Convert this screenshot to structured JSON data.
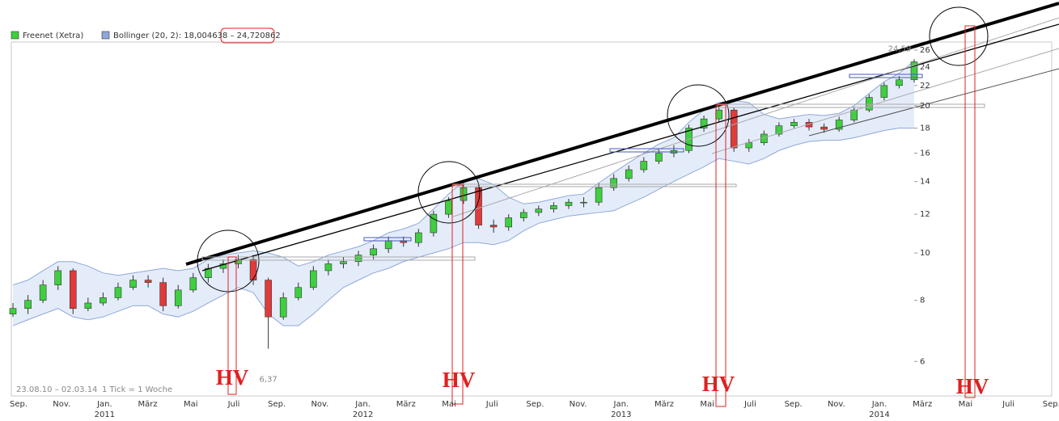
{
  "chart_data": {
    "type": "candlestick",
    "series_name": "Freenet (Xetra)",
    "color_up": "#3fcf3f",
    "color_down": "#e03a3a",
    "open": [
      7.5,
      7.7,
      8.0,
      8.6,
      9.2,
      7.7,
      7.9,
      8.1,
      8.5,
      8.8,
      8.7,
      7.8,
      8.4,
      8.9,
      9.3,
      9.5,
      9.7,
      8.8,
      7.4,
      8.1,
      8.5,
      9.2,
      9.5,
      9.6,
      9.9,
      10.2,
      10.6,
      10.5,
      11.0,
      12.0,
      12.8,
      13.6,
      11.4,
      11.3,
      11.8,
      12.1,
      12.3,
      12.5,
      12.7,
      12.7,
      13.6,
      14.2,
      14.8,
      15.4,
      16.0,
      16.2,
      18.0,
      18.8,
      19.6,
      16.4,
      16.8,
      17.5,
      18.2,
      18.5,
      18.1,
      17.9,
      18.7,
      19.6,
      20.8,
      22.0,
      22.6
    ],
    "high": [
      7.9,
      8.2,
      8.8,
      9.4,
      9.3,
      8.1,
      8.3,
      8.7,
      9.0,
      9.0,
      8.9,
      8.6,
      9.1,
      9.5,
      9.7,
      9.9,
      9.9,
      8.9,
      8.3,
      8.7,
      9.4,
      9.7,
      9.8,
      10.1,
      10.4,
      10.8,
      10.8,
      11.2,
      12.2,
      13.0,
      13.9,
      13.8,
      11.7,
      12.0,
      12.3,
      12.5,
      12.7,
      12.9,
      13.0,
      13.9,
      14.5,
      15.1,
      15.7,
      16.3,
      16.6,
      18.3,
      19.1,
      19.9,
      19.8,
      17.1,
      17.8,
      18.5,
      18.8,
      18.8,
      18.4,
      19.0,
      19.9,
      21.1,
      22.3,
      23.0,
      24.9
    ],
    "low": [
      7.4,
      7.5,
      7.9,
      8.4,
      7.5,
      7.6,
      7.8,
      8.0,
      8.4,
      8.5,
      7.6,
      7.7,
      8.3,
      8.7,
      9.1,
      9.3,
      8.6,
      6.37,
      7.3,
      8.0,
      8.4,
      9.0,
      9.3,
      9.4,
      9.7,
      10.0,
      10.3,
      10.3,
      10.8,
      11.8,
      12.6,
      11.2,
      11.0,
      11.1,
      11.6,
      11.9,
      12.1,
      12.3,
      12.4,
      12.5,
      13.4,
      14.0,
      14.6,
      15.2,
      15.7,
      16.0,
      17.7,
      18.5,
      16.1,
      16.1,
      16.6,
      17.3,
      18.0,
      17.8,
      17.6,
      17.7,
      18.5,
      19.4,
      20.5,
      21.7,
      22.3
    ],
    "close": [
      7.7,
      8.0,
      8.6,
      9.2,
      7.7,
      7.9,
      8.1,
      8.5,
      8.8,
      8.7,
      7.8,
      8.4,
      8.9,
      9.3,
      9.5,
      9.7,
      8.8,
      7.4,
      8.1,
      8.5,
      9.2,
      9.5,
      9.6,
      9.9,
      10.2,
      10.6,
      10.5,
      11.0,
      12.0,
      12.8,
      13.6,
      11.4,
      11.3,
      11.8,
      12.1,
      12.3,
      12.5,
      12.7,
      12.7,
      13.6,
      14.2,
      14.8,
      15.4,
      16.0,
      16.2,
      18.0,
      18.8,
      19.6,
      16.4,
      16.8,
      17.5,
      18.2,
      18.5,
      18.1,
      17.9,
      18.7,
      19.6,
      20.8,
      22.0,
      22.6,
      24.59
    ],
    "bollinger": {
      "name": "Bollinger (20, 2): 18,004638 – 24,720862",
      "color": "#8fa8d8",
      "upper": [
        8.6,
        8.8,
        9.2,
        9.6,
        9.6,
        9.4,
        9.1,
        9.0,
        9.1,
        9.2,
        9.3,
        9.2,
        9.3,
        9.7,
        9.9,
        10.0,
        10.1,
        10.0,
        9.8,
        9.4,
        9.6,
        9.9,
        10.1,
        10.3,
        10.6,
        11.0,
        11.2,
        11.5,
        12.3,
        13.2,
        14.0,
        14.2,
        13.8,
        13.0,
        12.6,
        12.7,
        12.9,
        13.1,
        13.2,
        13.9,
        14.6,
        15.3,
        16.0,
        16.7,
        17.2,
        18.5,
        19.6,
        20.3,
        20.5,
        20.3,
        19.2,
        18.8,
        19.0,
        19.2,
        19.1,
        19.3,
        20.0,
        21.2,
        22.4,
        23.3,
        24.7
      ],
      "lower": [
        7.1,
        7.3,
        7.5,
        7.7,
        7.4,
        7.3,
        7.4,
        7.6,
        7.8,
        7.8,
        7.5,
        7.4,
        7.6,
        7.9,
        8.2,
        8.5,
        8.3,
        7.5,
        7.1,
        7.1,
        7.5,
        8.0,
        8.5,
        8.8,
        9.1,
        9.3,
        9.6,
        9.8,
        10.0,
        10.2,
        10.5,
        10.5,
        10.4,
        10.6,
        11.1,
        11.5,
        11.7,
        11.9,
        12.0,
        12.1,
        12.2,
        12.6,
        13.0,
        13.5,
        14.0,
        14.5,
        15.0,
        15.6,
        15.4,
        15.2,
        15.6,
        16.2,
        16.6,
        16.9,
        17.0,
        17.0,
        17.2,
        17.5,
        17.8,
        18.0,
        18.0
      ]
    },
    "ylim": [
      5.1,
      27
    ],
    "log_scale": true,
    "yticks": [
      6,
      8,
      10,
      12,
      14,
      16,
      18,
      20,
      22,
      24,
      26
    ],
    "xticks": [
      "Sep.",
      "Nov.",
      "Jan.",
      "März",
      "Mai",
      "Juli",
      "Sep.",
      "Nov.",
      "Jan.",
      "März",
      "Mai",
      "Juli",
      "Sep.",
      "Nov.",
      "Jan.",
      "März",
      "Mai",
      "Juli",
      "Sep.",
      "Nov.",
      "Jan.",
      "März",
      "Mai",
      "Juli",
      "Sep."
    ],
    "year_labels": [
      "2011",
      "2012",
      "2013",
      "2014"
    ],
    "date_range": "23.08.10 – 02.03.14",
    "tick_note": "1 Tick = 1 Woche",
    "annotations": {
      "hv": [
        "HV",
        "HV",
        "HV",
        "HV"
      ],
      "low_label": {
        "value": 6.37,
        "label": "6,37"
      },
      "last_label": {
        "value": 24.59,
        "label": "24,59"
      }
    }
  }
}
